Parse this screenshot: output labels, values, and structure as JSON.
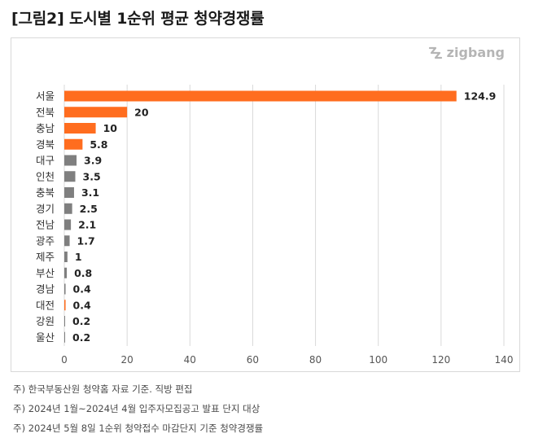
{
  "title": "[그림2] 도시별 1순위 평균 청약경쟁률",
  "brand": {
    "name": "zigbang",
    "icon": "zigbang-logo-icon"
  },
  "notes": [
    "주) 한국부동산원 청약홈 자료 기준. 직방 편집",
    "주) 2024년 1월~2024년 4월 입주자모집공고 발표 단지 대상",
    "주) 2024년 5월 8일 1순위 청약접수 마감단지 기준 청약경쟁률"
  ],
  "chart_data": {
    "type": "bar",
    "orientation": "horizontal",
    "categories": [
      "서울",
      "전북",
      "충남",
      "경북",
      "대구",
      "인천",
      "충북",
      "경기",
      "전남",
      "광주",
      "제주",
      "부산",
      "경남",
      "대전",
      "강원",
      "울산"
    ],
    "values": [
      124.9,
      20,
      10,
      5.8,
      3.9,
      3.5,
      3.1,
      2.5,
      2.1,
      1.7,
      1,
      0.8,
      0.4,
      0.4,
      0.2,
      0.2
    ],
    "value_labels": [
      "124.9",
      "20",
      "10",
      "5.8",
      "3.9",
      "3.5",
      "3.1",
      "2.5",
      "2.1",
      "1.7",
      "1",
      "0.8",
      "0.4",
      "0.4",
      "0.2",
      "0.2"
    ],
    "bar_colors": [
      "#ff6d1f",
      "#ff6d1f",
      "#ff6d1f",
      "#ff6d1f",
      "#7f7f7f",
      "#7f7f7f",
      "#7f7f7f",
      "#7f7f7f",
      "#7f7f7f",
      "#7f7f7f",
      "#7f7f7f",
      "#7f7f7f",
      "#7f7f7f",
      "#ff6d1f",
      "#7f7f7f",
      "#7f7f7f"
    ],
    "xlim": [
      0,
      140
    ],
    "xticks": [
      0,
      20,
      40,
      60,
      80,
      100,
      120,
      140
    ],
    "xtick_labels": [
      "0",
      "20",
      "40",
      "60",
      "80",
      "100",
      "120",
      "140"
    ],
    "grid": true,
    "title": "",
    "xlabel": "",
    "ylabel": ""
  }
}
